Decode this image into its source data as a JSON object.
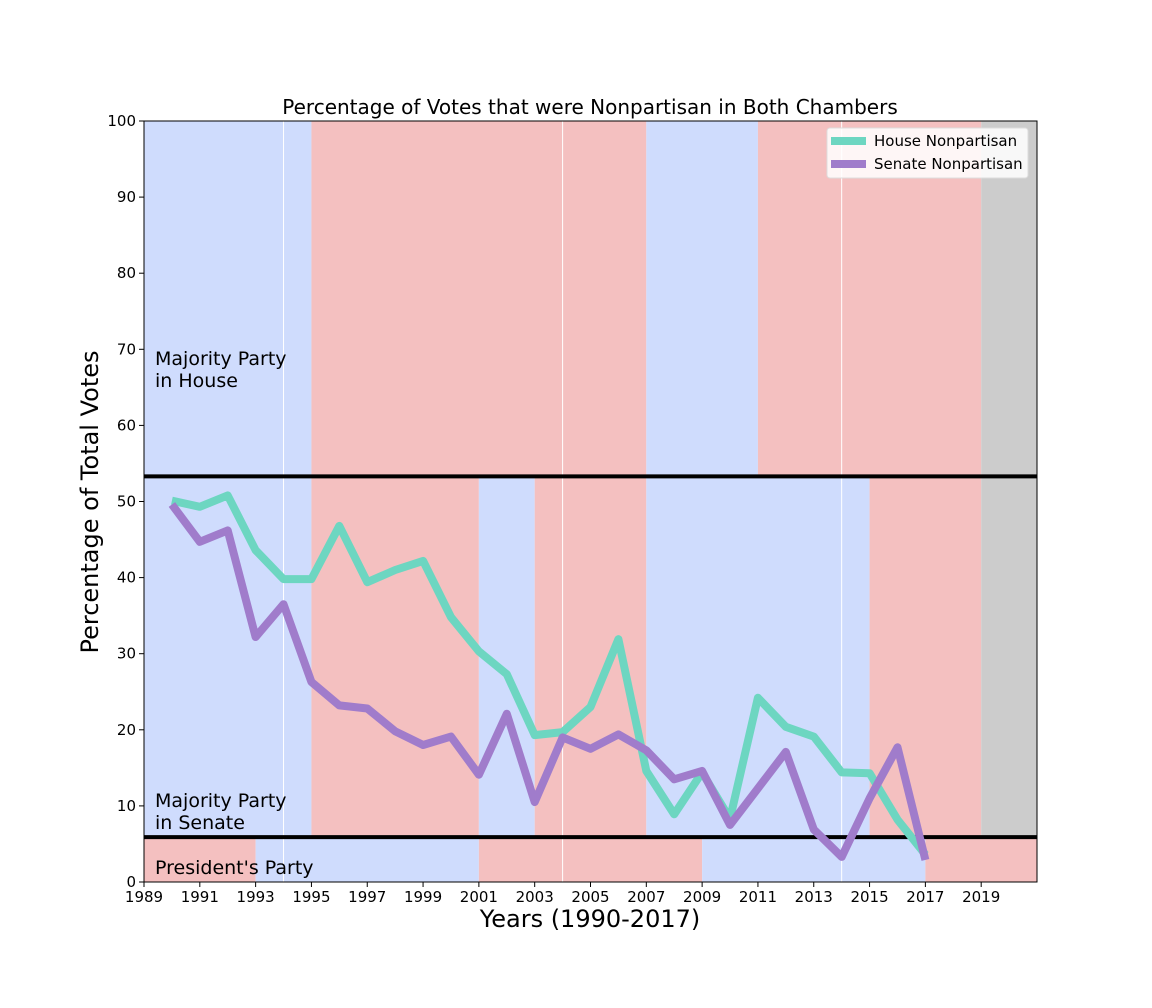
{
  "chart_data": {
    "type": "line",
    "title": "Percentage of Votes that were Nonpartisan in Both Chambers",
    "xlabel": "Years (1990-2017)",
    "ylabel": "Percentage of Total Votes",
    "xlim": [
      1989,
      2021
    ],
    "ylim": [
      0,
      100
    ],
    "xticks": [
      1989,
      1991,
      1993,
      1995,
      1997,
      1999,
      2001,
      2003,
      2005,
      2007,
      2009,
      2011,
      2013,
      2015,
      2017,
      2019
    ],
    "yticks": [
      0,
      10,
      20,
      30,
      40,
      50,
      60,
      70,
      80,
      90,
      100
    ],
    "grid": false,
    "legend_position": "top-right",
    "x": [
      1990,
      1991,
      1992,
      1993,
      1994,
      1995,
      1996,
      1997,
      1998,
      1999,
      2000,
      2001,
      2002,
      2003,
      2004,
      2005,
      2006,
      2007,
      2008,
      2009,
      2010,
      2011,
      2012,
      2013,
      2014,
      2015,
      2016,
      2017
    ],
    "series": [
      {
        "name": "House Nonpartisan",
        "color": "#6dd6c1",
        "values": [
          50.1,
          49.3,
          50.8,
          43.6,
          39.8,
          39.8,
          46.8,
          39.4,
          41.0,
          42.2,
          34.8,
          30.3,
          27.3,
          19.3,
          19.7,
          23.0,
          31.9,
          14.6,
          8.9,
          14.4,
          8.3,
          24.2,
          20.4,
          19.1,
          14.4,
          14.3,
          8.2,
          3.6
        ]
      },
      {
        "name": "Senate Nonpartisan",
        "color": "#a07ccb",
        "values": [
          49.6,
          44.7,
          46.2,
          32.2,
          36.5,
          26.3,
          23.2,
          22.8,
          19.8,
          18.0,
          19.1,
          14.1,
          22.1,
          10.5,
          19.0,
          17.5,
          19.4,
          17.3,
          13.5,
          14.6,
          7.5,
          12.3,
          17.1,
          6.9,
          3.3,
          11.0,
          17.7,
          2.9
        ]
      }
    ],
    "band_colors": {
      "democratic": "#cfdcfd",
      "republican": "#f4c0c0",
      "unknown": "#cccccc",
      "divider": "#ffffff",
      "separator": "#000000"
    },
    "background_bands": {
      "house": [
        {
          "start": 1989,
          "end": 1995,
          "party": "democratic"
        },
        {
          "start": 1995,
          "end": 2007,
          "party": "republican"
        },
        {
          "start": 2007,
          "end": 2011,
          "party": "democratic"
        },
        {
          "start": 2011,
          "end": 2019,
          "party": "republican"
        },
        {
          "start": 2019,
          "end": 2021,
          "party": "unknown"
        }
      ],
      "senate": [
        {
          "start": 1989,
          "end": 1995,
          "party": "democratic"
        },
        {
          "start": 1995,
          "end": 2001,
          "party": "republican"
        },
        {
          "start": 2001,
          "end": 2003,
          "party": "democratic"
        },
        {
          "start": 2003,
          "end": 2007,
          "party": "republican"
        },
        {
          "start": 2007,
          "end": 2015,
          "party": "democratic"
        },
        {
          "start": 2015,
          "end": 2019,
          "party": "republican"
        },
        {
          "start": 2019,
          "end": 2021,
          "party": "unknown"
        }
      ],
      "president": [
        {
          "start": 1989,
          "end": 1993,
          "party": "republican"
        },
        {
          "start": 1993,
          "end": 2001,
          "party": "democratic"
        },
        {
          "start": 2001,
          "end": 2009,
          "party": "republican"
        },
        {
          "start": 2009,
          "end": 2017,
          "party": "democratic"
        },
        {
          "start": 2017,
          "end": 2021,
          "party": "republican"
        }
      ]
    },
    "band_boundaries": {
      "house_senate": 53.3,
      "senate_president": 5.9
    },
    "vertical_dividers": [
      1994,
      2004,
      2014
    ],
    "region_labels": {
      "house": [
        "Majority Party",
        "in House"
      ],
      "senate": [
        "Majority Party",
        "in Senate"
      ],
      "president": [
        "President's Party"
      ]
    }
  }
}
